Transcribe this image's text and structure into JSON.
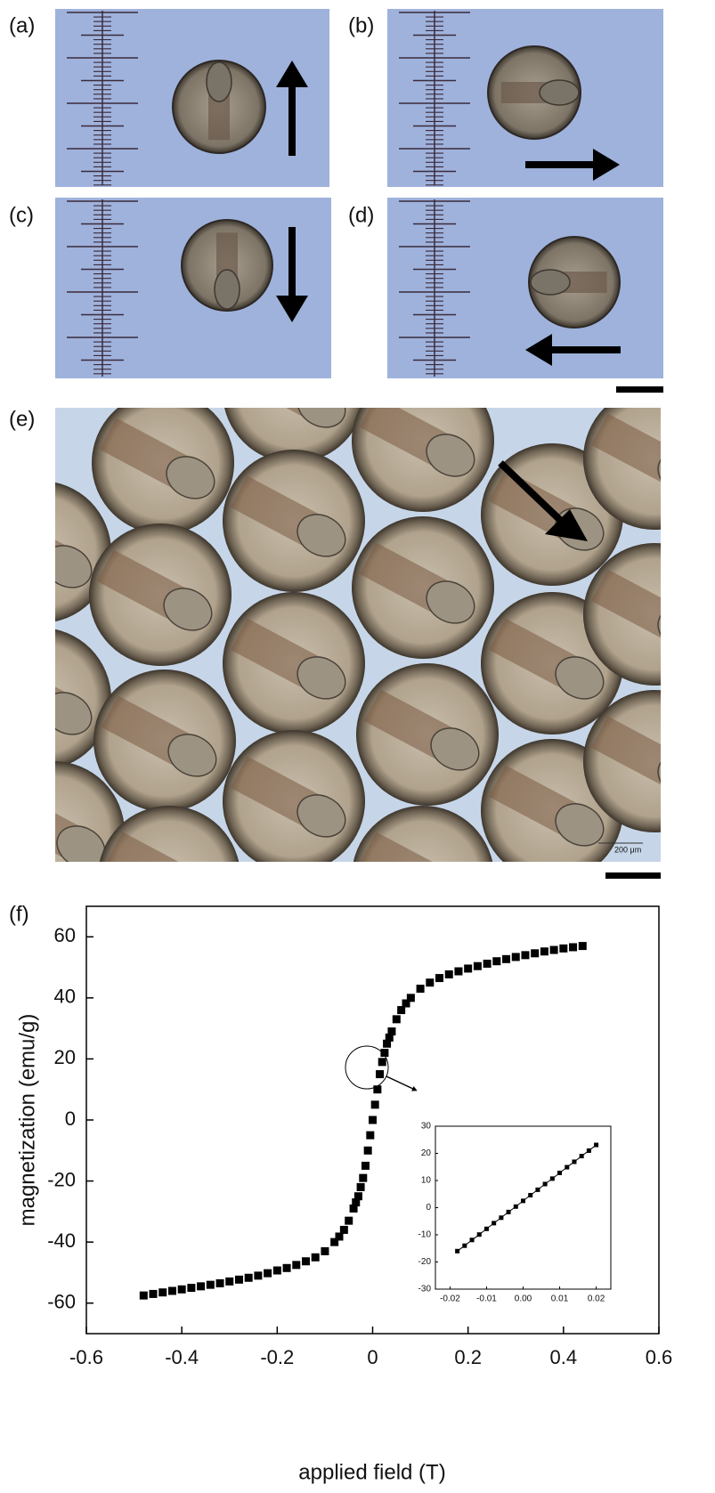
{
  "panel_labels": [
    "(a)",
    "(b)",
    "(c)",
    "(d)",
    "(e)",
    "(f)"
  ],
  "scale_bar_label": "200 μm",
  "chart_data": [
    {
      "type": "scatter",
      "x_label": "applied field (T)",
      "y_label": "magnetization (emu/g)",
      "xlim": [
        -0.6,
        0.6
      ],
      "ylim": [
        -70,
        70
      ],
      "xticks": [
        -0.6,
        -0.4,
        -0.2,
        0,
        0.2,
        0.4,
        0.6
      ],
      "yticks": [
        -60,
        -40,
        -20,
        0,
        20,
        40,
        60
      ],
      "marker": "square",
      "color": "#000000",
      "x": [
        -0.48,
        -0.46,
        -0.44,
        -0.42,
        -0.4,
        -0.38,
        -0.36,
        -0.34,
        -0.32,
        -0.3,
        -0.28,
        -0.26,
        -0.24,
        -0.22,
        -0.2,
        -0.18,
        -0.16,
        -0.14,
        -0.12,
        -0.1,
        -0.08,
        -0.07,
        -0.06,
        -0.05,
        -0.04,
        -0.035,
        -0.03,
        -0.025,
        -0.02,
        -0.015,
        -0.01,
        -0.005,
        0,
        0.005,
        0.01,
        0.015,
        0.02,
        0.025,
        0.03,
        0.035,
        0.04,
        0.05,
        0.06,
        0.07,
        0.08,
        0.1,
        0.12,
        0.14,
        0.16,
        0.18,
        0.2,
        0.22,
        0.24,
        0.26,
        0.28,
        0.3,
        0.32,
        0.34,
        0.36,
        0.38,
        0.4,
        0.42,
        0.44
      ],
      "values": [
        -57.5,
        -57,
        -56.5,
        -56,
        -55.5,
        -55,
        -54.5,
        -54,
        -53.5,
        -52.9,
        -52.3,
        -51.7,
        -51,
        -50.2,
        -49.3,
        -48.5,
        -47.5,
        -46.3,
        -45,
        -43,
        -40,
        -38.2,
        -36,
        -33,
        -29,
        -27,
        -25,
        -22,
        -19,
        -15,
        -10,
        -5,
        0,
        5,
        10,
        15,
        19,
        22,
        25,
        27,
        29,
        33,
        36,
        38.2,
        40,
        43,
        45,
        46.5,
        47.7,
        48.7,
        49.6,
        50.4,
        51.2,
        52,
        52.7,
        53.4,
        54,
        54.6,
        55.2,
        55.7,
        56.2,
        56.6,
        57
      ]
    },
    {
      "type": "scatter",
      "fit_line": true,
      "xlim": [
        -0.024,
        0.024
      ],
      "ylim": [
        -30,
        30
      ],
      "xticks": [
        {
          "value": -0.02,
          "label": "-0.02"
        },
        {
          "value": -0.01,
          "label": "-0.01"
        },
        {
          "value": 0,
          "label": "0.00"
        },
        {
          "value": 0.01,
          "label": "0.01"
        },
        {
          "value": 0.02,
          "label": "0.02"
        }
      ],
      "yticks": [
        -30,
        -20,
        -10,
        0,
        10,
        20,
        30
      ],
      "marker": "square",
      "color": "#000000",
      "x": [
        -0.018,
        -0.016,
        -0.014,
        -0.012,
        -0.01,
        -0.008,
        -0.006,
        -0.004,
        -0.002,
        0,
        0.002,
        0.004,
        0.006,
        0.008,
        0.01,
        0.012,
        0.014,
        0.016,
        0.018,
        0.02
      ],
      "values": [
        -16,
        -14,
        -11.9,
        -9.9,
        -7.8,
        -5.7,
        -3.7,
        -1.6,
        0.4,
        2.5,
        4.6,
        6.6,
        8.7,
        10.7,
        12.8,
        14.9,
        16.9,
        19,
        21,
        23.1
      ]
    }
  ]
}
